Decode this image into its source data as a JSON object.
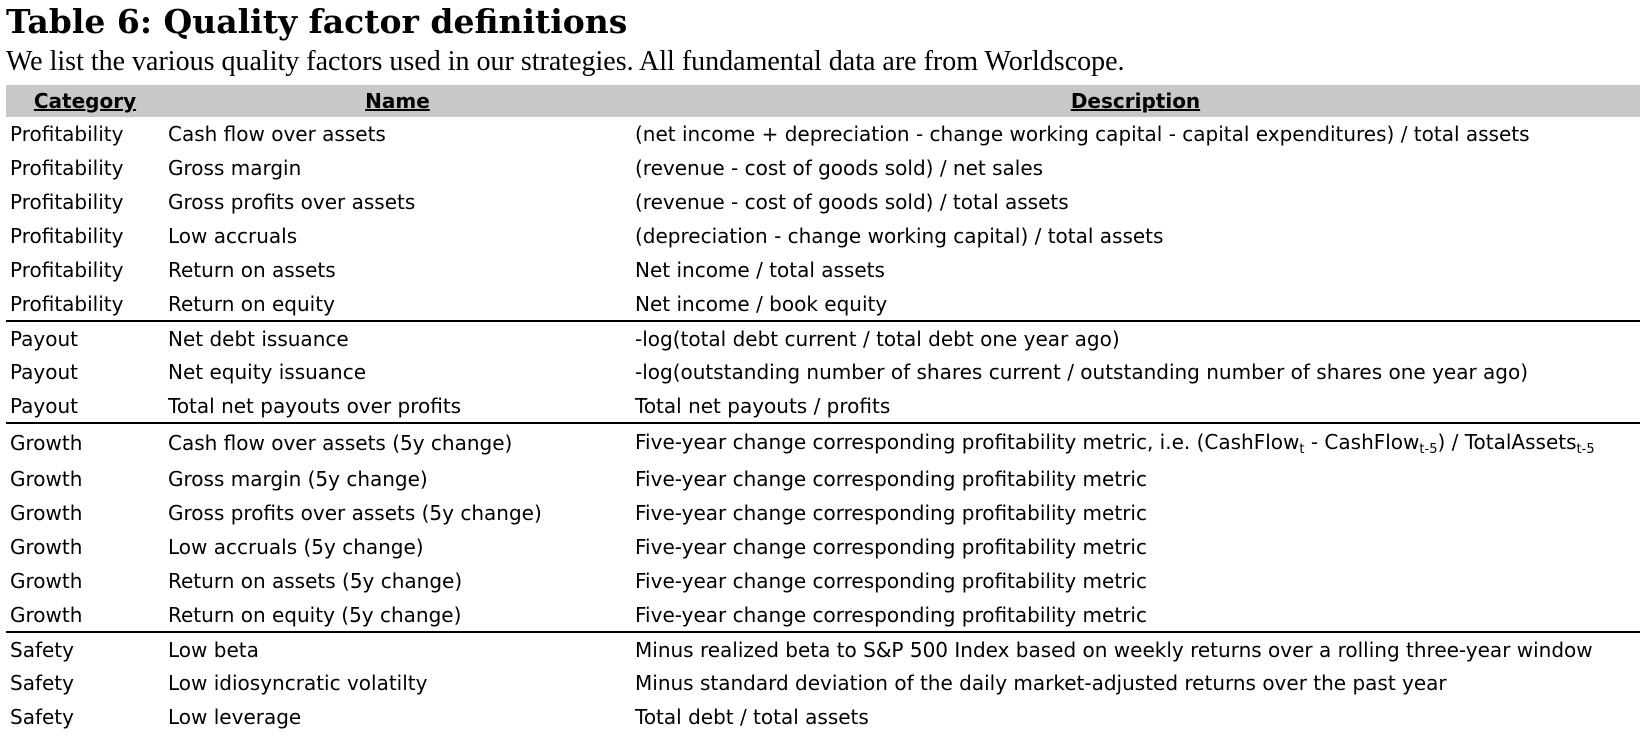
{
  "title": "Table 6: Quality factor definitions",
  "subtitle": "We list the various quality factors used in our strategies. All fundamental data are from Worldscope.",
  "table": {
    "headers": [
      "Category",
      "Name",
      "Description"
    ],
    "rows": [
      {
        "category": "Profitability",
        "name": "Cash flow over assets",
        "description": "(net income + depreciation - change working capital - capital expenditures) / total assets"
      },
      {
        "category": "Profitability",
        "name": "Gross margin",
        "description": "(revenue - cost of goods sold) / net sales"
      },
      {
        "category": "Profitability",
        "name": "Gross profits over assets",
        "description": "(revenue - cost of goods sold) / total assets"
      },
      {
        "category": "Profitability",
        "name": "Low accruals",
        "description": "(depreciation - change working capital) / total assets"
      },
      {
        "category": "Profitability",
        "name": "Return on assets",
        "description": "Net income / total assets"
      },
      {
        "category": "Profitability",
        "name": "Return on equity",
        "description": "Net income / book equity"
      },
      {
        "category": "Payout",
        "name": "Net debt issuance",
        "description": "-log(total debt current / total debt one year ago)"
      },
      {
        "category": "Payout",
        "name": "Net equity issuance",
        "description": "-log(outstanding number of shares current / outstanding number of shares one year ago)"
      },
      {
        "category": "Payout",
        "name": "Total net payouts over profits",
        "description": "Total net payouts / profits"
      },
      {
        "category": "Growth",
        "name": "Cash flow over assets (5y change)",
        "description_parts": {
          "p1": "Five-year change corresponding profitability metric, i.e. (CashFlow",
          "s1": "t",
          "p2": " - CashFlow",
          "s2": "t-5",
          "p3": ") / TotalAssets",
          "s3": "t-5"
        }
      },
      {
        "category": "Growth",
        "name": "Gross margin (5y change)",
        "description": "Five-year change corresponding profitability metric"
      },
      {
        "category": "Growth",
        "name": "Gross profits over assets (5y change)",
        "description": "Five-year change corresponding profitability metric"
      },
      {
        "category": "Growth",
        "name": "Low accruals (5y change)",
        "description": "Five-year change corresponding profitability metric"
      },
      {
        "category": "Growth",
        "name": "Return on assets (5y change)",
        "description": "Five-year change corresponding profitability metric"
      },
      {
        "category": "Growth",
        "name": "Return on equity (5y change)",
        "description": "Five-year change corresponding profitability metric"
      },
      {
        "category": "Safety",
        "name": "Low beta",
        "description": "Minus realized beta to S&P 500 Index based on weekly returns over a rolling three-year window"
      },
      {
        "category": "Safety",
        "name": "Low idiosyncratic volatilty",
        "description": "Minus standard deviation of the daily market-adjusted returns over the past year"
      },
      {
        "category": "Safety",
        "name": "Low leverage",
        "description": "Total debt / total assets"
      }
    ]
  }
}
